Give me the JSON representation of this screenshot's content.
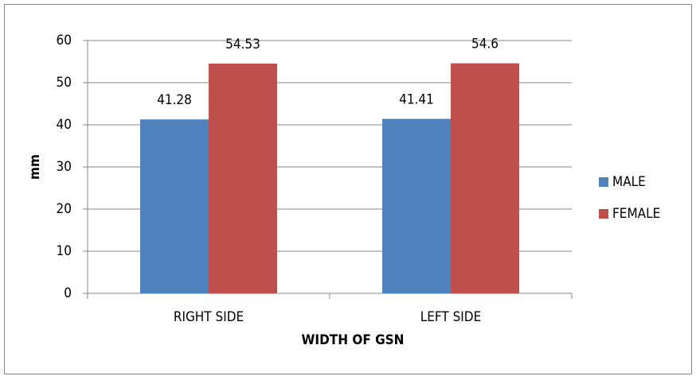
{
  "chart_data": {
    "type": "bar",
    "x_label": "WIDTH OF GSN",
    "y_label": "mm",
    "categories": [
      "RIGHT SIDE",
      "LEFT SIDE"
    ],
    "series": [
      {
        "name": "MALE",
        "color": "#4f81bd",
        "values": [
          41.28,
          41.41
        ]
      },
      {
        "name": "FEMALE",
        "color": "#c0504d",
        "values": [
          54.53,
          54.6
        ]
      }
    ],
    "ylim": [
      0,
      60
    ],
    "yticks": [
      0,
      10,
      20,
      30,
      40,
      50,
      60
    ],
    "grid": true,
    "legend": "right"
  }
}
